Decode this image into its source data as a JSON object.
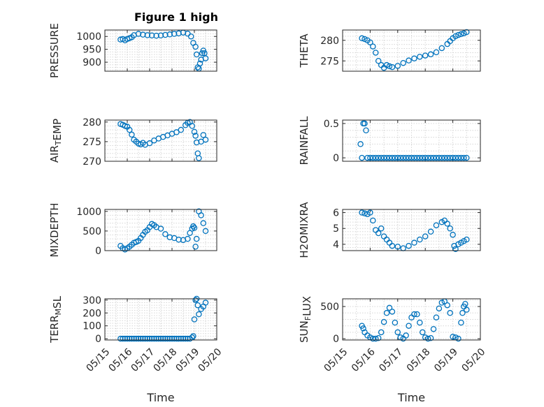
{
  "figure": {
    "title": "Figure 1 high"
  },
  "colors": {
    "marker": "#0072bd",
    "axis": "#262626",
    "grid": "#d6d6d6"
  },
  "chart_data": [
    {
      "type": "scatter",
      "title": "Figure 1 high",
      "xlabel": "",
      "ylabel": "PRESSURE",
      "ylabel_parts": [
        {
          "t": "PRESSURE",
          "sub": false
        }
      ],
      "xlim": [
        0,
        5
      ],
      "ylim": [
        865,
        1025
      ],
      "yticks": [
        900,
        950,
        1000
      ],
      "xticks": [],
      "xtick_labels": [],
      "grid": true,
      "marker": "circle",
      "x": [
        0.7,
        0.8,
        0.9,
        1.0,
        1.1,
        1.2,
        1.3,
        1.5,
        1.7,
        1.9,
        2.1,
        2.3,
        2.5,
        2.7,
        2.9,
        3.1,
        3.3,
        3.5,
        3.7,
        3.85,
        3.95,
        4.05,
        4.1,
        4.15,
        4.2,
        4.25,
        4.3,
        4.35,
        4.4,
        4.45,
        4.5
      ],
      "y": [
        988,
        990,
        985,
        990,
        993,
        997,
        1005,
        1010,
        1007,
        1005,
        1004,
        1003,
        1004,
        1006,
        1008,
        1010,
        1012,
        1015,
        1011,
        1000,
        975,
        960,
        930,
        880,
        875,
        895,
        910,
        935,
        945,
        935,
        915
      ]
    },
    {
      "type": "scatter",
      "title": "",
      "xlabel": "",
      "ylabel": "THETA",
      "ylabel_parts": [
        {
          "t": "THETA",
          "sub": false
        }
      ],
      "xlim": [
        0,
        5
      ],
      "ylim": [
        272.5,
        282.5
      ],
      "yticks": [
        275,
        280
      ],
      "xticks": [],
      "xtick_labels": [],
      "grid": true,
      "marker": "circle",
      "x": [
        0.7,
        0.8,
        0.9,
        1.0,
        1.1,
        1.2,
        1.3,
        1.4,
        1.5,
        1.6,
        1.7,
        1.8,
        2.0,
        2.2,
        2.4,
        2.6,
        2.8,
        3.0,
        3.2,
        3.4,
        3.6,
        3.8,
        3.9,
        4.0,
        4.1,
        4.2,
        4.3,
        4.4,
        4.5
      ],
      "y": [
        280.5,
        280.3,
        280,
        279.5,
        278.5,
        277,
        275,
        274,
        273.3,
        274,
        273.7,
        273.5,
        273.8,
        274.5,
        275.1,
        275.6,
        276,
        276.3,
        276.6,
        277.1,
        278.1,
        279.1,
        279.8,
        280.5,
        281,
        281.3,
        281.5,
        281.7,
        282
      ]
    },
    {
      "type": "scatter",
      "title": "",
      "xlabel": "",
      "ylabel": "AIR_TEMP",
      "ylabel_parts": [
        {
          "t": "AIR",
          "sub": false
        },
        {
          "t": "T",
          "sub": true
        },
        {
          "t": "EMP",
          "sub": false
        }
      ],
      "xlim": [
        0,
        5
      ],
      "ylim": [
        270,
        280.5
      ],
      "yticks": [
        270,
        275,
        280
      ],
      "xticks": [],
      "xtick_labels": [],
      "grid": true,
      "marker": "circle",
      "x": [
        0.7,
        0.8,
        0.9,
        1.0,
        1.1,
        1.2,
        1.3,
        1.4,
        1.5,
        1.6,
        1.7,
        1.8,
        2.0,
        2.2,
        2.4,
        2.6,
        2.8,
        3.0,
        3.2,
        3.4,
        3.6,
        3.7,
        3.8,
        3.9,
        4.0,
        4.05,
        4.1,
        4.15,
        4.2,
        4.3,
        4.4,
        4.5
      ],
      "y": [
        279.5,
        279.3,
        279,
        278.8,
        278,
        276.8,
        275.5,
        275,
        274.5,
        274.3,
        274.7,
        274.2,
        274.6,
        275.3,
        275.8,
        276.2,
        276.6,
        277,
        277.4,
        278,
        279.2,
        279.8,
        280,
        279,
        277.5,
        276.5,
        274.8,
        272,
        270.8,
        275,
        276.7,
        275.5
      ]
    },
    {
      "type": "scatter",
      "title": "",
      "xlabel": "",
      "ylabel": "RAINFALL",
      "ylabel_parts": [
        {
          "t": "RAINFALL",
          "sub": false
        }
      ],
      "xlim": [
        0,
        5
      ],
      "ylim": [
        -0.05,
        0.55
      ],
      "yticks": [
        0,
        0.5
      ],
      "xticks": [],
      "xtick_labels": [],
      "grid": true,
      "marker": "circle",
      "x": [
        0.65,
        0.7,
        0.75,
        0.8,
        0.85,
        0.9,
        1.0,
        1.1,
        1.2,
        1.3,
        1.4,
        1.5,
        1.6,
        1.7,
        1.8,
        1.9,
        2.0,
        2.1,
        2.2,
        2.3,
        2.4,
        2.5,
        2.6,
        2.7,
        2.8,
        2.9,
        3.0,
        3.1,
        3.2,
        3.3,
        3.4,
        3.5,
        3.6,
        3.7,
        3.8,
        3.9,
        4.0,
        4.1,
        4.2,
        4.3,
        4.4,
        4.5
      ],
      "y": [
        0.2,
        0,
        0.5,
        0.5,
        0.4,
        0,
        0,
        0,
        0,
        0,
        0,
        0,
        0,
        0,
        0,
        0,
        0,
        0,
        0,
        0,
        0,
        0,
        0,
        0,
        0,
        0,
        0,
        0,
        0,
        0,
        0,
        0,
        0,
        0,
        0,
        0,
        0,
        0,
        0,
        0,
        0,
        0
      ]
    },
    {
      "type": "scatter",
      "title": "",
      "xlabel": "",
      "ylabel": "MIXDEPTH",
      "ylabel_parts": [
        {
          "t": "MIXDEPTH",
          "sub": false
        }
      ],
      "xlim": [
        0,
        5
      ],
      "ylim": [
        0,
        1050
      ],
      "yticks": [
        0,
        500,
        1000
      ],
      "xticks": [],
      "xtick_labels": [],
      "grid": true,
      "marker": "circle",
      "x": [
        0.7,
        0.8,
        0.9,
        1.0,
        1.1,
        1.2,
        1.3,
        1.4,
        1.5,
        1.6,
        1.7,
        1.8,
        1.9,
        2.0,
        2.1,
        2.2,
        2.3,
        2.5,
        2.7,
        2.9,
        3.1,
        3.3,
        3.5,
        3.7,
        3.8,
        3.9,
        3.95,
        4.0,
        4.05,
        4.1,
        4.2,
        4.3,
        4.4,
        4.5
      ],
      "y": [
        120,
        60,
        30,
        60,
        100,
        150,
        200,
        220,
        250,
        320,
        400,
        480,
        520,
        600,
        680,
        650,
        600,
        560,
        420,
        340,
        320,
        280,
        270,
        300,
        450,
        560,
        620,
        580,
        100,
        300,
        1000,
        900,
        700,
        500
      ]
    },
    {
      "type": "scatter",
      "title": "",
      "xlabel": "",
      "ylabel": "H2OMIXRA",
      "ylabel_parts": [
        {
          "t": "H2OMIXRA",
          "sub": false
        }
      ],
      "xlim": [
        0,
        5
      ],
      "ylim": [
        3.6,
        6.2
      ],
      "yticks": [
        4,
        5,
        6
      ],
      "xticks": [],
      "xtick_labels": [],
      "grid": true,
      "marker": "circle",
      "x": [
        0.7,
        0.8,
        0.9,
        1.0,
        1.1,
        1.2,
        1.3,
        1.4,
        1.5,
        1.6,
        1.7,
        1.8,
        2.0,
        2.2,
        2.4,
        2.6,
        2.8,
        3.0,
        3.2,
        3.4,
        3.6,
        3.7,
        3.8,
        3.9,
        4.0,
        4.05,
        4.1,
        4.2,
        4.3,
        4.4,
        4.5
      ],
      "y": [
        6,
        5.95,
        5.9,
        6,
        5.5,
        4.9,
        4.7,
        5,
        4.5,
        4.3,
        4.1,
        3.9,
        3.85,
        3.75,
        3.9,
        4.1,
        4.3,
        4.5,
        4.8,
        5.2,
        5.4,
        5.5,
        5.3,
        5,
        4.6,
        3.9,
        3.7,
        4,
        4.1,
        4.2,
        4.3
      ]
    },
    {
      "type": "scatter",
      "title": "",
      "xlabel": "Time",
      "ylabel": "TERR_MSL",
      "ylabel_parts": [
        {
          "t": "TERR",
          "sub": false
        },
        {
          "t": "M",
          "sub": true
        },
        {
          "t": "SL",
          "sub": false
        }
      ],
      "xlim": [
        0,
        5
      ],
      "ylim": [
        -10,
        310
      ],
      "yticks": [
        0,
        100,
        200,
        300
      ],
      "xticks": [
        0,
        1,
        2,
        3,
        4,
        5
      ],
      "xtick_labels": [
        "05/15",
        "05/16",
        "05/17",
        "05/18",
        "05/19",
        "05/20"
      ],
      "grid": true,
      "marker": "circle",
      "x": [
        0.7,
        0.8,
        0.9,
        1.0,
        1.1,
        1.2,
        1.3,
        1.4,
        1.5,
        1.6,
        1.7,
        1.8,
        1.9,
        2.0,
        2.1,
        2.2,
        2.3,
        2.4,
        2.5,
        2.6,
        2.7,
        2.8,
        2.9,
        3.0,
        3.1,
        3.2,
        3.3,
        3.4,
        3.5,
        3.6,
        3.7,
        3.8,
        3.9,
        3.95,
        4.0,
        4.05,
        4.1,
        4.15,
        4.2,
        4.3,
        4.4,
        4.5
      ],
      "y": [
        0,
        0,
        0,
        0,
        0,
        0,
        0,
        0,
        0,
        0,
        0,
        0,
        0,
        0,
        0,
        0,
        0,
        0,
        0,
        0,
        0,
        0,
        0,
        0,
        0,
        0,
        0,
        0,
        0,
        0,
        0,
        0,
        10,
        20,
        150,
        300,
        310,
        260,
        190,
        230,
        250,
        280
      ]
    },
    {
      "type": "scatter",
      "title": "",
      "xlabel": "Time",
      "ylabel": "SUN_FLUX",
      "ylabel_parts": [
        {
          "t": "SUN",
          "sub": false
        },
        {
          "t": "F",
          "sub": true
        },
        {
          "t": "LUX",
          "sub": false
        }
      ],
      "xlim": [
        0,
        5
      ],
      "ylim": [
        -20,
        620
      ],
      "yticks": [
        0,
        500
      ],
      "xticks": [
        0,
        1,
        2,
        3,
        4,
        5
      ],
      "xtick_labels": [
        "05/15",
        "05/16",
        "05/17",
        "05/18",
        "05/19",
        "05/20"
      ],
      "grid": true,
      "marker": "circle",
      "x": [
        0.7,
        0.75,
        0.8,
        0.9,
        1.0,
        1.1,
        1.2,
        1.3,
        1.4,
        1.5,
        1.6,
        1.7,
        1.8,
        1.9,
        2.0,
        2.1,
        2.2,
        2.3,
        2.4,
        2.5,
        2.6,
        2.7,
        2.8,
        2.9,
        3.0,
        3.1,
        3.2,
        3.3,
        3.4,
        3.5,
        3.6,
        3.7,
        3.8,
        3.9,
        4.0,
        4.1,
        4.2,
        4.3,
        4.35,
        4.4,
        4.45,
        4.5
      ],
      "y": [
        200,
        160,
        100,
        50,
        20,
        0,
        0,
        10,
        100,
        260,
        400,
        480,
        420,
        250,
        100,
        20,
        0,
        50,
        200,
        330,
        380,
        380,
        250,
        100,
        20,
        0,
        10,
        150,
        330,
        470,
        560,
        580,
        520,
        400,
        30,
        20,
        0,
        250,
        400,
        500,
        540,
        450
      ]
    }
  ]
}
